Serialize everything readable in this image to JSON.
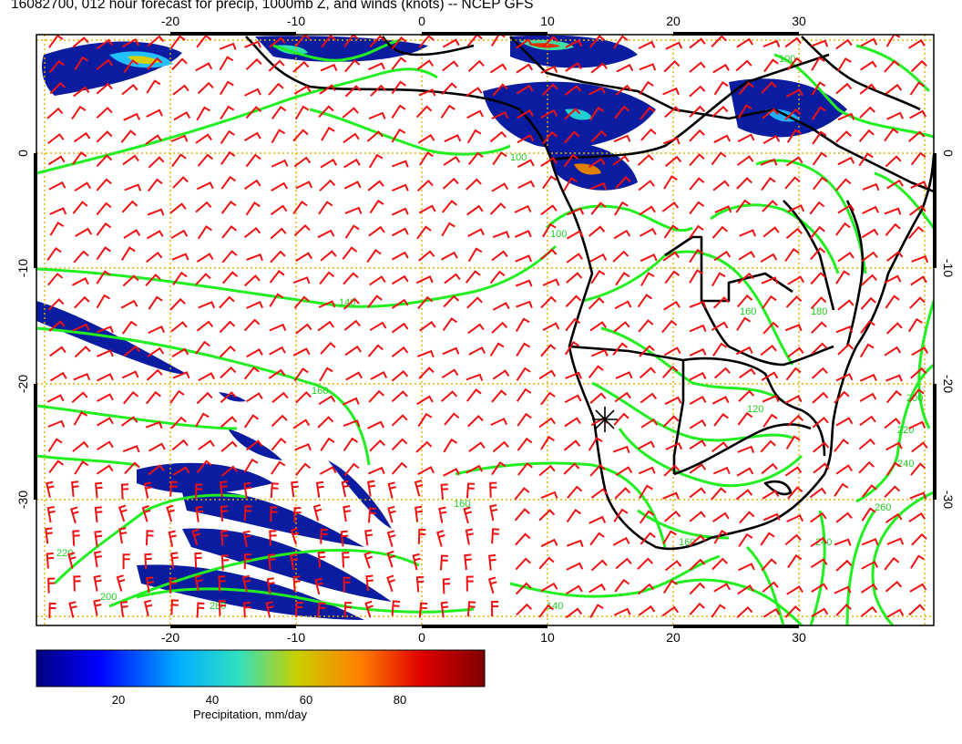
{
  "title": "16082700, 012 hour forecast for precip, 1000mb Z, and winds (knots) -- NCEP GFS",
  "map": {
    "lon_ticks": [
      "-20",
      "-10",
      "0",
      "10",
      "20",
      "30"
    ],
    "lat_ticks": [
      "0",
      "-10",
      "-20",
      "-30"
    ],
    "contour_labels": [
      "140",
      "160",
      "100",
      "120",
      "180",
      "200",
      "220",
      "240",
      "260",
      "280"
    ],
    "colors": {
      "contour": "#22ee22",
      "barbs": "#ee1111",
      "coast": "#000000",
      "gridline": "#e0b000"
    },
    "marker": "station-cross"
  },
  "colorbar": {
    "ticks": [
      "20",
      "40",
      "60",
      "80"
    ],
    "label": "Precipitation, mm/day",
    "min": 0,
    "max": 100,
    "colors": [
      "#00007f",
      "#0000ff",
      "#00b0ff",
      "#30e0c0",
      "#c8d000",
      "#ff8000",
      "#e00000",
      "#7f0000"
    ]
  }
}
